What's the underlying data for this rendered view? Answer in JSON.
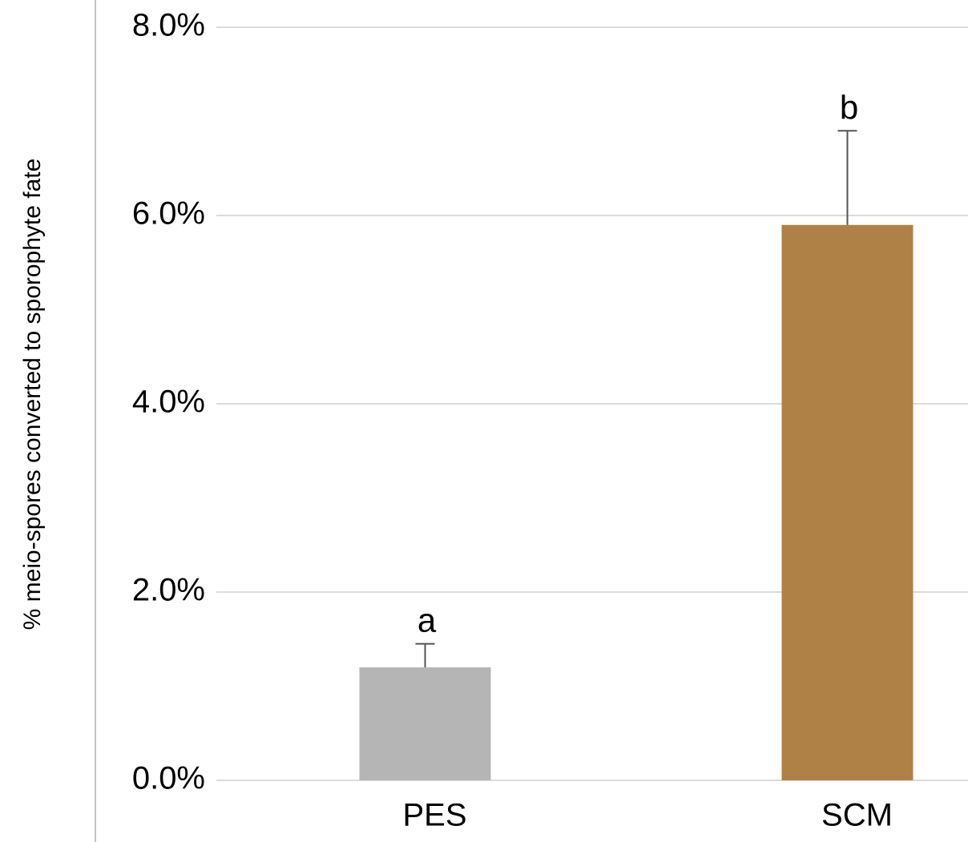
{
  "chart_data": {
    "type": "bar",
    "y_label": "% meio-spores converted to sporophyte fate",
    "categories": [
      "PES",
      "SCM"
    ],
    "values": [
      1.2,
      5.9
    ],
    "errors": [
      0.25,
      1.0
    ],
    "annotations": [
      "a",
      "b"
    ],
    "colors": [
      "#b5b5b5",
      "#b08147"
    ],
    "ylim": [
      0,
      8
    ],
    "yticks": [
      {
        "value": 0,
        "label": "0.0%"
      },
      {
        "value": 2,
        "label": "2.0%"
      },
      {
        "value": 4,
        "label": "4.0%"
      },
      {
        "value": 6,
        "label": "6.0%"
      },
      {
        "value": 8,
        "label": "8.0%"
      }
    ],
    "grid": true
  }
}
